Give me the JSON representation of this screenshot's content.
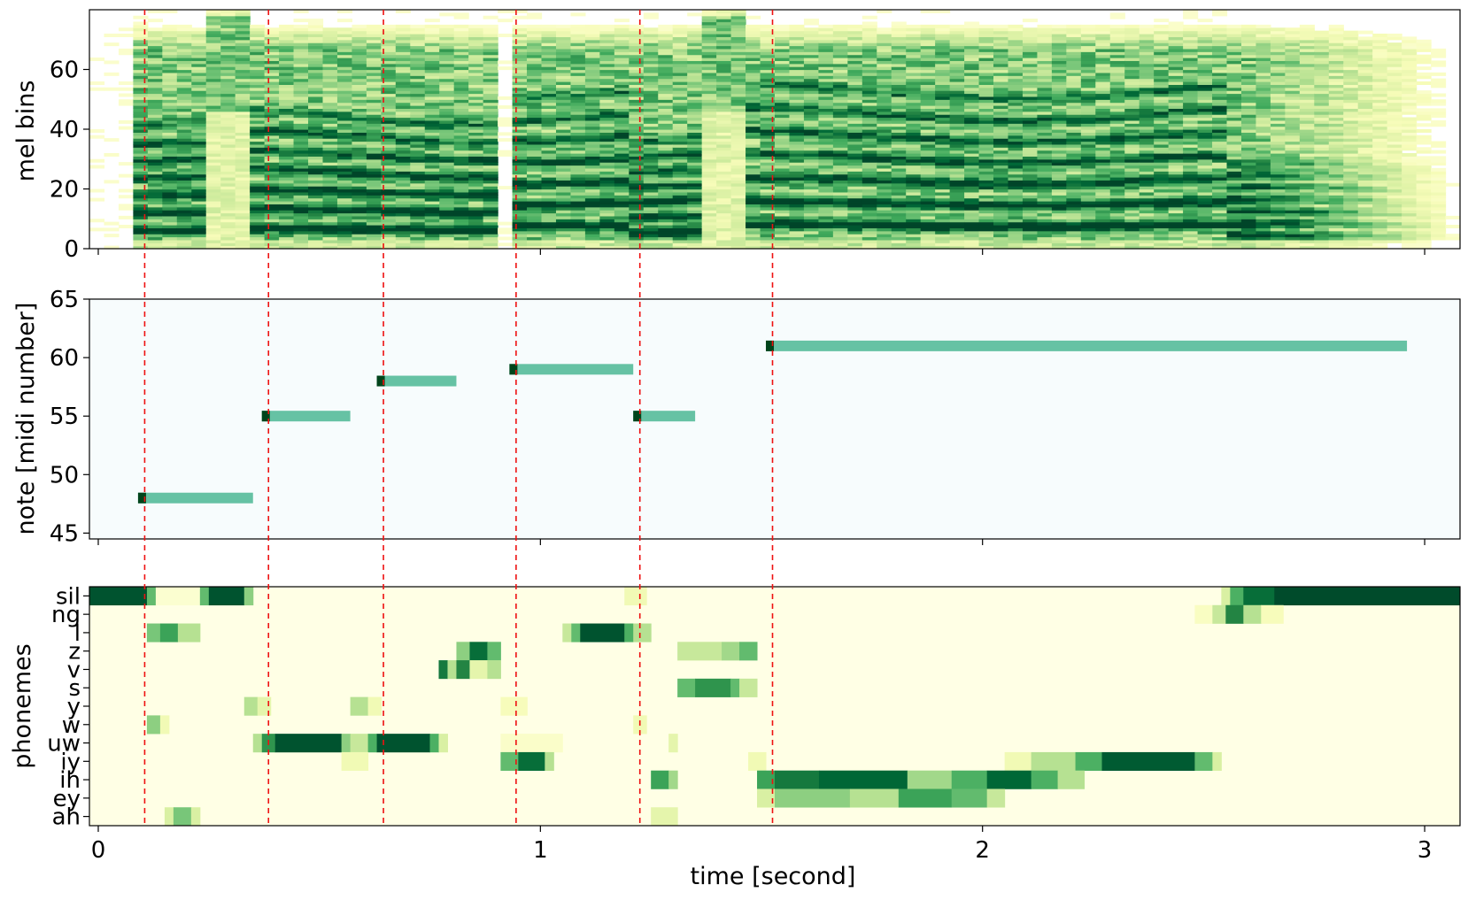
{
  "chart_data": {
    "type": "figure",
    "x_axis": {
      "label": "time [second]",
      "lim": [
        -0.02,
        3.08
      ],
      "ticks": [
        0,
        1,
        2,
        3
      ],
      "tick_labels": [
        "0",
        "1",
        "2",
        "3"
      ]
    },
    "boundaries": [
      0.105,
      0.385,
      0.645,
      0.945,
      1.225,
      1.525
    ],
    "colors": {
      "boundary": "#ee1111",
      "note_bar": "#66c2a4",
      "note_onset": "#00441b",
      "note_bg": "#f7fcfd",
      "heat": [
        "#ffffe5",
        "#f7fcb9",
        "#d9f0a3",
        "#addd8e",
        "#78c679",
        "#41ab5d",
        "#238443",
        "#006837",
        "#004529"
      ]
    },
    "mel": {
      "type": "heatmap",
      "ylabel": "mel bins",
      "ylim": [
        0,
        80
      ],
      "yticks": [
        0,
        20,
        40,
        60
      ],
      "ytick_labels": [
        "0",
        "20",
        "40",
        "60"
      ],
      "frames": 94,
      "bins": 80,
      "segments": [
        {
          "start": 0.07,
          "end": 0.24,
          "f0": 9
        },
        {
          "start": 0.24,
          "end": 0.34,
          "f0": 0
        },
        {
          "start": 0.34,
          "end": 0.9,
          "f0": 10
        },
        {
          "start": 0.92,
          "end": 1.2,
          "f0": 12
        },
        {
          "start": 1.2,
          "end": 1.35,
          "f0": 8
        },
        {
          "start": 1.35,
          "end": 1.48,
          "f0": 0
        },
        {
          "start": 1.48,
          "end": 2.55,
          "f0": 12
        },
        {
          "start": 2.55,
          "end": 3.08,
          "f0": 6
        }
      ]
    },
    "notes": {
      "type": "bar",
      "ylabel": "note [midi number]",
      "ylim": [
        44.5,
        65
      ],
      "yticks": [
        45,
        50,
        55,
        60,
        65
      ],
      "ytick_labels": [
        "45",
        "50",
        "55",
        "60",
        "65"
      ],
      "series": [
        {
          "start": 0.09,
          "end": 0.35,
          "pitch": 48
        },
        {
          "start": 0.37,
          "end": 0.57,
          "pitch": 55
        },
        {
          "start": 0.63,
          "end": 0.81,
          "pitch": 58
        },
        {
          "start": 0.93,
          "end": 1.21,
          "pitch": 59
        },
        {
          "start": 1.21,
          "end": 1.35,
          "pitch": 55
        },
        {
          "start": 1.51,
          "end": 2.96,
          "pitch": 61
        }
      ]
    },
    "phonemes": {
      "type": "heatmap",
      "ylabel": "phonemes",
      "labels": [
        "sil",
        "ng",
        "l",
        "z",
        "v",
        "s",
        "y",
        "w",
        "uw",
        "iy",
        "ih",
        "ey",
        "ah"
      ],
      "blocks": [
        {
          "p": "sil",
          "start": -0.02,
          "end": 0.11,
          "v": 0.95
        },
        {
          "p": "sil",
          "start": 0.11,
          "end": 0.13,
          "v": 0.55
        },
        {
          "p": "sil",
          "start": 0.13,
          "end": 0.23,
          "v": 0.06
        },
        {
          "p": "sil",
          "start": 0.23,
          "end": 0.25,
          "v": 0.55
        },
        {
          "p": "sil",
          "start": 0.25,
          "end": 0.33,
          "v": 0.95
        },
        {
          "p": "sil",
          "start": 0.33,
          "end": 0.35,
          "v": 0.45
        },
        {
          "p": "sil",
          "start": 1.19,
          "end": 1.24,
          "v": 0.15
        },
        {
          "p": "sil",
          "start": 2.54,
          "end": 2.56,
          "v": 0.25
        },
        {
          "p": "sil",
          "start": 2.56,
          "end": 2.59,
          "v": 0.6
        },
        {
          "p": "sil",
          "start": 2.59,
          "end": 2.66,
          "v": 0.85
        },
        {
          "p": "sil",
          "start": 2.66,
          "end": 3.08,
          "v": 0.98
        },
        {
          "p": "ng",
          "start": 2.48,
          "end": 2.52,
          "v": 0.1
        },
        {
          "p": "ng",
          "start": 2.52,
          "end": 2.55,
          "v": 0.3
        },
        {
          "p": "ng",
          "start": 2.55,
          "end": 2.59,
          "v": 0.75
        },
        {
          "p": "ng",
          "start": 2.59,
          "end": 2.63,
          "v": 0.35
        },
        {
          "p": "ng",
          "start": 2.63,
          "end": 2.68,
          "v": 0.12
        },
        {
          "p": "l",
          "start": 0.11,
          "end": 0.14,
          "v": 0.5
        },
        {
          "p": "l",
          "start": 0.14,
          "end": 0.18,
          "v": 0.65
        },
        {
          "p": "l",
          "start": 0.18,
          "end": 0.23,
          "v": 0.35
        },
        {
          "p": "l",
          "start": 1.05,
          "end": 1.07,
          "v": 0.3
        },
        {
          "p": "l",
          "start": 1.07,
          "end": 1.09,
          "v": 0.55
        },
        {
          "p": "l",
          "start": 1.09,
          "end": 1.19,
          "v": 0.95
        },
        {
          "p": "l",
          "start": 1.19,
          "end": 1.21,
          "v": 0.6
        },
        {
          "p": "l",
          "start": 1.21,
          "end": 1.25,
          "v": 0.35
        },
        {
          "p": "z",
          "start": 0.81,
          "end": 0.84,
          "v": 0.45
        },
        {
          "p": "z",
          "start": 0.84,
          "end": 0.88,
          "v": 0.85
        },
        {
          "p": "z",
          "start": 0.88,
          "end": 0.91,
          "v": 0.55
        },
        {
          "p": "z",
          "start": 1.31,
          "end": 1.41,
          "v": 0.3
        },
        {
          "p": "z",
          "start": 1.41,
          "end": 1.45,
          "v": 0.4
        },
        {
          "p": "z",
          "start": 1.45,
          "end": 1.49,
          "v": 0.55
        },
        {
          "p": "v",
          "start": 0.77,
          "end": 0.79,
          "v": 0.8
        },
        {
          "p": "v",
          "start": 0.79,
          "end": 0.81,
          "v": 0.35
        },
        {
          "p": "v",
          "start": 0.81,
          "end": 0.84,
          "v": 0.75
        },
        {
          "p": "v",
          "start": 0.84,
          "end": 0.88,
          "v": 0.2
        },
        {
          "p": "v",
          "start": 0.88,
          "end": 0.91,
          "v": 0.35
        },
        {
          "p": "s",
          "start": 1.31,
          "end": 1.35,
          "v": 0.55
        },
        {
          "p": "s",
          "start": 1.35,
          "end": 1.43,
          "v": 0.7
        },
        {
          "p": "s",
          "start": 1.43,
          "end": 1.45,
          "v": 0.55
        },
        {
          "p": "s",
          "start": 1.45,
          "end": 1.49,
          "v": 0.3
        },
        {
          "p": "y",
          "start": 0.33,
          "end": 0.36,
          "v": 0.35
        },
        {
          "p": "y",
          "start": 0.36,
          "end": 0.39,
          "v": 0.2
        },
        {
          "p": "y",
          "start": 0.57,
          "end": 0.61,
          "v": 0.35
        },
        {
          "p": "y",
          "start": 0.61,
          "end": 0.64,
          "v": 0.15
        },
        {
          "p": "y",
          "start": 0.91,
          "end": 0.97,
          "v": 0.12
        },
        {
          "p": "w",
          "start": 0.11,
          "end": 0.14,
          "v": 0.45
        },
        {
          "p": "w",
          "start": 0.14,
          "end": 0.16,
          "v": 0.15
        },
        {
          "p": "w",
          "start": 1.21,
          "end": 1.24,
          "v": 0.15
        },
        {
          "p": "uw",
          "start": 0.35,
          "end": 0.37,
          "v": 0.35
        },
        {
          "p": "uw",
          "start": 0.37,
          "end": 0.4,
          "v": 0.7
        },
        {
          "p": "uw",
          "start": 0.4,
          "end": 0.55,
          "v": 0.95
        },
        {
          "p": "uw",
          "start": 0.55,
          "end": 0.57,
          "v": 0.45
        },
        {
          "p": "uw",
          "start": 0.57,
          "end": 0.61,
          "v": 0.3
        },
        {
          "p": "uw",
          "start": 0.61,
          "end": 0.63,
          "v": 0.6
        },
        {
          "p": "uw",
          "start": 0.63,
          "end": 0.75,
          "v": 0.95
        },
        {
          "p": "uw",
          "start": 0.75,
          "end": 0.77,
          "v": 0.6
        },
        {
          "p": "uw",
          "start": 0.77,
          "end": 0.79,
          "v": 0.25
        },
        {
          "p": "uw",
          "start": 0.91,
          "end": 1.05,
          "v": 0.08
        },
        {
          "p": "uw",
          "start": 1.29,
          "end": 1.31,
          "v": 0.2
        },
        {
          "p": "iy",
          "start": 0.55,
          "end": 0.61,
          "v": 0.15
        },
        {
          "p": "iy",
          "start": 0.91,
          "end": 0.95,
          "v": 0.55
        },
        {
          "p": "iy",
          "start": 0.95,
          "end": 1.01,
          "v": 0.85
        },
        {
          "p": "iy",
          "start": 1.01,
          "end": 1.03,
          "v": 0.35
        },
        {
          "p": "iy",
          "start": 1.47,
          "end": 1.51,
          "v": 0.15
        },
        {
          "p": "iy",
          "start": 2.05,
          "end": 2.11,
          "v": 0.15
        },
        {
          "p": "iy",
          "start": 2.11,
          "end": 2.21,
          "v": 0.35
        },
        {
          "p": "iy",
          "start": 2.21,
          "end": 2.27,
          "v": 0.6
        },
        {
          "p": "iy",
          "start": 2.27,
          "end": 2.48,
          "v": 0.92
        },
        {
          "p": "iy",
          "start": 2.48,
          "end": 2.52,
          "v": 0.55
        },
        {
          "p": "iy",
          "start": 2.52,
          "end": 2.54,
          "v": 0.25
        },
        {
          "p": "ih",
          "start": 1.25,
          "end": 1.29,
          "v": 0.65
        },
        {
          "p": "ih",
          "start": 1.29,
          "end": 1.31,
          "v": 0.4
        },
        {
          "p": "ih",
          "start": 1.49,
          "end": 1.53,
          "v": 0.65
        },
        {
          "p": "ih",
          "start": 1.53,
          "end": 1.63,
          "v": 0.8
        },
        {
          "p": "ih",
          "start": 1.63,
          "end": 1.83,
          "v": 0.88
        },
        {
          "p": "ih",
          "start": 1.83,
          "end": 1.93,
          "v": 0.4
        },
        {
          "p": "ih",
          "start": 1.93,
          "end": 2.01,
          "v": 0.6
        },
        {
          "p": "ih",
          "start": 2.01,
          "end": 2.11,
          "v": 0.88
        },
        {
          "p": "ih",
          "start": 2.11,
          "end": 2.17,
          "v": 0.6
        },
        {
          "p": "ih",
          "start": 2.17,
          "end": 2.23,
          "v": 0.35
        },
        {
          "p": "ey",
          "start": 1.49,
          "end": 1.53,
          "v": 0.25
        },
        {
          "p": "ey",
          "start": 1.53,
          "end": 1.7,
          "v": 0.45
        },
        {
          "p": "ey",
          "start": 1.7,
          "end": 1.81,
          "v": 0.35
        },
        {
          "p": "ey",
          "start": 1.81,
          "end": 1.93,
          "v": 0.65
        },
        {
          "p": "ey",
          "start": 1.93,
          "end": 2.01,
          "v": 0.55
        },
        {
          "p": "ey",
          "start": 2.01,
          "end": 2.05,
          "v": 0.3
        },
        {
          "p": "ah",
          "start": 0.15,
          "end": 0.17,
          "v": 0.25
        },
        {
          "p": "ah",
          "start": 0.17,
          "end": 0.21,
          "v": 0.5
        },
        {
          "p": "ah",
          "start": 0.21,
          "end": 0.23,
          "v": 0.25
        },
        {
          "p": "ah",
          "start": 1.25,
          "end": 1.31,
          "v": 0.2
        }
      ]
    }
  }
}
